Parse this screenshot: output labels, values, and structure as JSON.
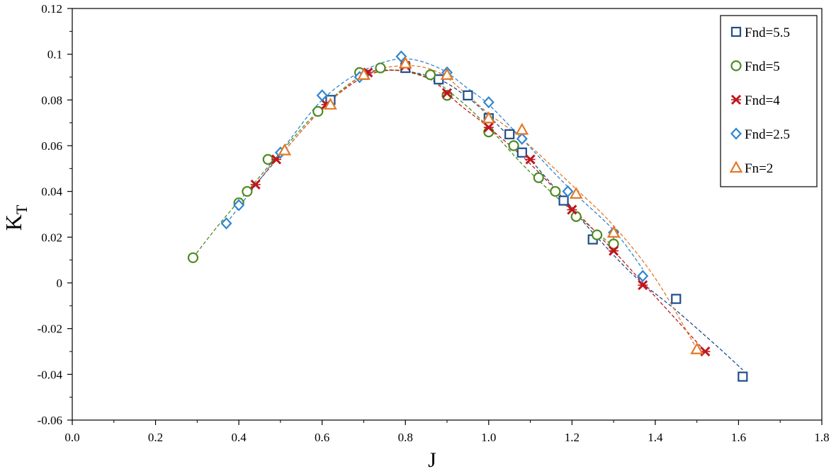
{
  "chart_data": {
    "type": "scatter",
    "title": "",
    "xlabel": "J",
    "ylabel_main": "K",
    "ylabel_sub": "T",
    "xlim": [
      0.0,
      1.8
    ],
    "ylim": [
      -0.06,
      0.12
    ],
    "x_ticks": [
      "0.0",
      "0.2",
      "0.4",
      "0.6",
      "0.8",
      "1.0",
      "1.2",
      "1.4",
      "1.6",
      "1.8"
    ],
    "y_ticks": [
      "-0.06",
      "-0.04",
      "-0.02",
      "0",
      "0.02",
      "0.04",
      "0.06",
      "0.08",
      "0.1",
      "0.12"
    ],
    "grid": false,
    "legend_position": "top-right",
    "series": [
      {
        "name": "Fnd=5.5",
        "marker": "square",
        "color": "#1F4E8C",
        "points": [
          [
            0.62,
            0.08
          ],
          [
            0.7,
            0.091
          ],
          [
            0.8,
            0.094
          ],
          [
            0.88,
            0.089
          ],
          [
            0.95,
            0.082
          ],
          [
            1.0,
            0.072
          ],
          [
            1.05,
            0.065
          ],
          [
            1.08,
            0.057
          ],
          [
            1.18,
            0.036
          ],
          [
            1.25,
            0.019
          ],
          [
            1.45,
            -0.007
          ],
          [
            1.61,
            -0.041
          ]
        ],
        "curve": [
          [
            0.62,
            0.08
          ],
          [
            0.7,
            0.091
          ],
          [
            0.78,
            0.093
          ],
          [
            0.88,
            0.089
          ],
          [
            0.95,
            0.081
          ],
          [
            1.0,
            0.073
          ],
          [
            1.08,
            0.058
          ],
          [
            1.18,
            0.037
          ],
          [
            1.25,
            0.022
          ],
          [
            1.35,
            0.003
          ],
          [
            1.45,
            -0.012
          ],
          [
            1.55,
            -0.028
          ],
          [
            1.61,
            -0.038
          ]
        ]
      },
      {
        "name": "Fnd=5",
        "marker": "circle",
        "color": "#4E8A24",
        "points": [
          [
            0.29,
            0.011
          ],
          [
            0.4,
            0.035
          ],
          [
            0.42,
            0.04
          ],
          [
            0.47,
            0.054
          ],
          [
            0.59,
            0.075
          ],
          [
            0.69,
            0.092
          ],
          [
            0.74,
            0.094
          ],
          [
            0.86,
            0.091
          ],
          [
            0.9,
            0.082
          ],
          [
            1.0,
            0.066
          ],
          [
            1.06,
            0.06
          ],
          [
            1.12,
            0.046
          ],
          [
            1.16,
            0.04
          ],
          [
            1.21,
            0.029
          ],
          [
            1.26,
            0.021
          ],
          [
            1.3,
            0.017
          ]
        ],
        "curve": [
          [
            0.29,
            0.011
          ],
          [
            0.35,
            0.025
          ],
          [
            0.42,
            0.04
          ],
          [
            0.5,
            0.057
          ],
          [
            0.59,
            0.075
          ],
          [
            0.69,
            0.09
          ],
          [
            0.77,
            0.093
          ],
          [
            0.86,
            0.089
          ],
          [
            0.93,
            0.08
          ],
          [
            1.0,
            0.068
          ],
          [
            1.08,
            0.052
          ],
          [
            1.16,
            0.038
          ],
          [
            1.26,
            0.022
          ],
          [
            1.3,
            0.016
          ]
        ]
      },
      {
        "name": "Fnd=4",
        "marker": "x",
        "color": "#C0161E",
        "points": [
          [
            0.44,
            0.043
          ],
          [
            0.49,
            0.054
          ],
          [
            0.61,
            0.078
          ],
          [
            0.71,
            0.092
          ],
          [
            0.8,
            0.095
          ],
          [
            0.9,
            0.083
          ],
          [
            1.0,
            0.068
          ],
          [
            1.1,
            0.054
          ],
          [
            1.2,
            0.032
          ],
          [
            1.3,
            0.014
          ],
          [
            1.37,
            -0.001
          ],
          [
            1.52,
            -0.03
          ]
        ],
        "curve": [
          [
            0.44,
            0.043
          ],
          [
            0.52,
            0.06
          ],
          [
            0.61,
            0.078
          ],
          [
            0.7,
            0.09
          ],
          [
            0.78,
            0.093
          ],
          [
            0.86,
            0.089
          ],
          [
            0.93,
            0.078
          ],
          [
            1.0,
            0.068
          ],
          [
            1.1,
            0.052
          ],
          [
            1.2,
            0.033
          ],
          [
            1.3,
            0.014
          ],
          [
            1.37,
            0.0
          ],
          [
            1.45,
            -0.016
          ],
          [
            1.52,
            -0.03
          ]
        ]
      },
      {
        "name": "Fnd=2.5",
        "marker": "diamond",
        "color": "#2E86D1",
        "points": [
          [
            0.37,
            0.026
          ],
          [
            0.4,
            0.034
          ],
          [
            0.5,
            0.057
          ],
          [
            0.6,
            0.082
          ],
          [
            0.69,
            0.09
          ],
          [
            0.79,
            0.099
          ],
          [
            0.9,
            0.092
          ],
          [
            1.0,
            0.079
          ],
          [
            1.08,
            0.063
          ],
          [
            1.19,
            0.04
          ],
          [
            1.3,
            0.022
          ],
          [
            1.37,
            0.003
          ]
        ],
        "curve": [
          [
            0.37,
            0.026
          ],
          [
            0.45,
            0.045
          ],
          [
            0.52,
            0.062
          ],
          [
            0.6,
            0.08
          ],
          [
            0.69,
            0.092
          ],
          [
            0.79,
            0.098
          ],
          [
            0.88,
            0.094
          ],
          [
            0.95,
            0.085
          ],
          [
            1.0,
            0.078
          ],
          [
            1.08,
            0.063
          ],
          [
            1.19,
            0.042
          ],
          [
            1.3,
            0.023
          ],
          [
            1.37,
            0.006
          ]
        ]
      },
      {
        "name": "Fn=2",
        "marker": "triangle",
        "color": "#E07A2A",
        "points": [
          [
            0.51,
            0.058
          ],
          [
            0.62,
            0.078
          ],
          [
            0.7,
            0.091
          ],
          [
            0.8,
            0.096
          ],
          [
            0.9,
            0.091
          ],
          [
            1.0,
            0.072
          ],
          [
            1.08,
            0.067
          ],
          [
            1.21,
            0.039
          ],
          [
            1.3,
            0.022
          ],
          [
            1.5,
            -0.029
          ]
        ],
        "curve": [
          [
            0.51,
            0.058
          ],
          [
            0.6,
            0.076
          ],
          [
            0.7,
            0.091
          ],
          [
            0.8,
            0.095
          ],
          [
            0.88,
            0.092
          ],
          [
            0.95,
            0.082
          ],
          [
            1.0,
            0.074
          ],
          [
            1.08,
            0.063
          ],
          [
            1.21,
            0.041
          ],
          [
            1.3,
            0.025
          ],
          [
            1.4,
            0.002
          ],
          [
            1.5,
            -0.029
          ]
        ]
      }
    ]
  }
}
